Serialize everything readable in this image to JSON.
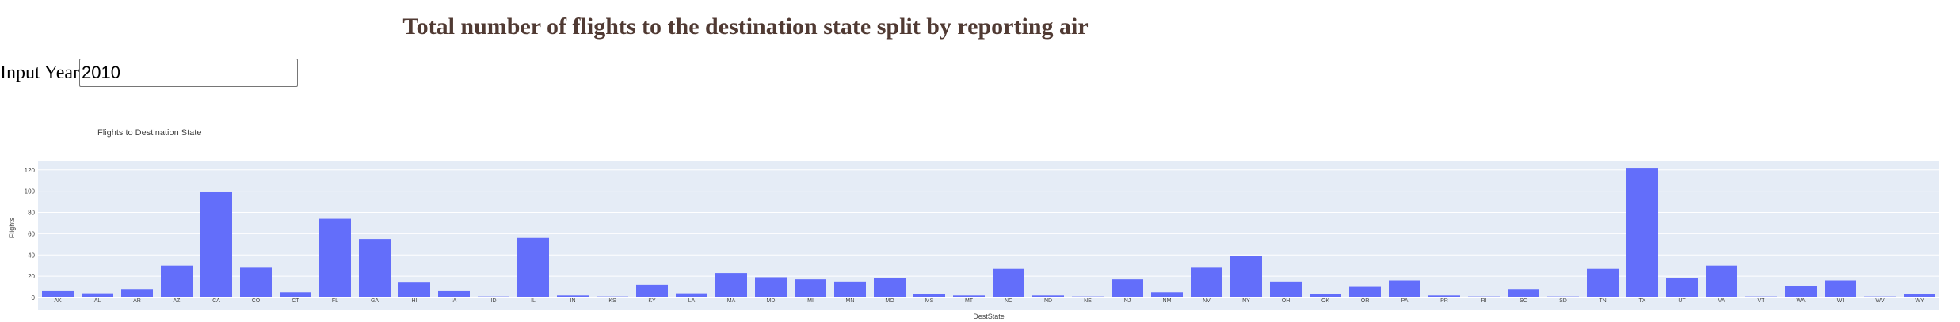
{
  "header": {
    "title": "Total number of flights to the destination state split by reporting air"
  },
  "year_input": {
    "label": "Input Year",
    "value": "2010"
  },
  "colors": {
    "title": "#503a33",
    "bar": "#636efa",
    "plot_background": "#e5ecf6",
    "grid": "#ffffff"
  },
  "chart_data": {
    "type": "bar",
    "title": "Flights to Destination State",
    "xlabel": "DestState",
    "ylabel": "Flights",
    "ylim": [
      0,
      128
    ],
    "yticks": [
      0,
      20,
      40,
      60,
      80,
      100,
      120
    ],
    "grid": true,
    "categories": [
      "AK",
      "AL",
      "AR",
      "AZ",
      "CA",
      "CO",
      "CT",
      "FL",
      "GA",
      "HI",
      "IA",
      "ID",
      "IL",
      "IN",
      "KS",
      "KY",
      "LA",
      "MA",
      "MD",
      "MI",
      "MN",
      "MO",
      "MS",
      "MT",
      "NC",
      "ND",
      "NE",
      "NJ",
      "NM",
      "NV",
      "NY",
      "OH",
      "OK",
      "OR",
      "PA",
      "PR",
      "RI",
      "SC",
      "SD",
      "TN",
      "TX",
      "UT",
      "VA",
      "VT",
      "WA",
      "WI",
      "WV",
      "WY"
    ],
    "values": [
      6,
      4,
      8,
      30,
      99,
      28,
      5,
      74,
      55,
      14,
      6,
      1,
      56,
      2,
      1,
      12,
      4,
      23,
      19,
      17,
      15,
      18,
      3,
      2,
      27,
      2,
      1,
      17,
      5,
      28,
      39,
      15,
      3,
      10,
      16,
      2,
      1,
      8,
      1,
      27,
      122,
      18,
      30,
      1,
      11,
      16,
      1,
      3
    ]
  }
}
